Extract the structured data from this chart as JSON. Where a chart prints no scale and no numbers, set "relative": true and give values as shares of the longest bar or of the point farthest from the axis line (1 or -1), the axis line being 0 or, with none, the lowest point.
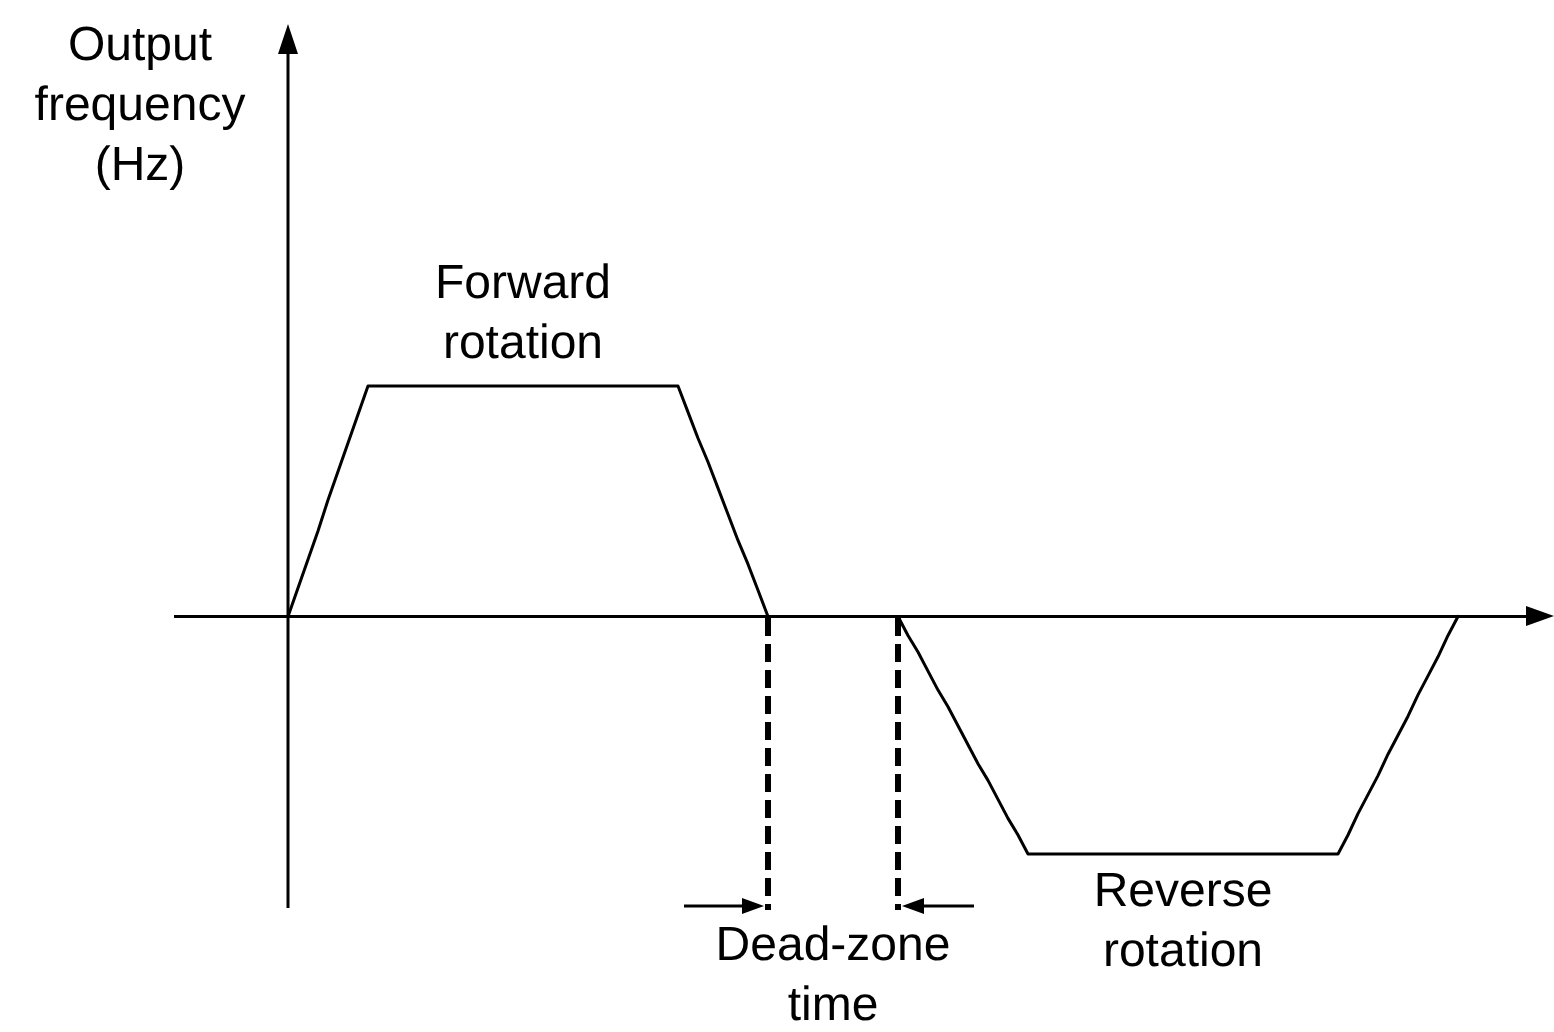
{
  "chart_data": {
    "type": "line",
    "ylabel": "Output frequency (Hz)",
    "relative": true,
    "categories": [
      null,
      null,
      null,
      null,
      null,
      null,
      null,
      null,
      null,
      null,
      null,
      null,
      null,
      null,
      null,
      null,
      null,
      null,
      null,
      null,
      null,
      null,
      null,
      null,
      null,
      null,
      null,
      null,
      null,
      null,
      null,
      null,
      null,
      null,
      null,
      null,
      null,
      null,
      null,
      null,
      null,
      null,
      null,
      null,
      null,
      null,
      null,
      null,
      null,
      null,
      null,
      null,
      null,
      null,
      null,
      null,
      null,
      null,
      null,
      null,
      null,
      null,
      null,
      null,
      null,
      null,
      null,
      null,
      null,
      null,
      null,
      null,
      null,
      null,
      null,
      null,
      null,
      null,
      null,
      null,
      null,
      null,
      null,
      null,
      null,
      null,
      null,
      null,
      null,
      null,
      null,
      null,
      null,
      null,
      null,
      null,
      null,
      null,
      null,
      null,
      null,
      null,
      null,
      null,
      null,
      null,
      null,
      null,
      null,
      null,
      null,
      null,
      null,
      null,
      null,
      null,
      null,
      null
    ],
    "series": [
      {
        "color": "#000000",
        "values": [
          0,
          0.12,
          0.24,
          0.36,
          0.49,
          0.61,
          0.73,
          0.85,
          0.97,
          0.97,
          0.97,
          0.97,
          0.97,
          0.97,
          0.97,
          0.97,
          0.97,
          0.97,
          0.97,
          0.97,
          0.97,
          0.97,
          0.97,
          0.97,
          0.97,
          0.97,
          0.97,
          0.97,
          0.97,
          0.97,
          0.97,
          0.97,
          0.97,
          0.97,
          0.97,
          0.97,
          0.97,
          0.97,
          0.97,
          0.97,
          0.86,
          0.75,
          0.65,
          0.54,
          0.43,
          0.32,
          0.22,
          0.11,
          0,
          0,
          0,
          0,
          0,
          0,
          0,
          0,
          0,
          0,
          0,
          0,
          0,
          0,
          -0.08,
          -0.15,
          -0.23,
          -0.31,
          -0.38,
          -0.46,
          -0.54,
          -0.62,
          -0.69,
          -0.77,
          -0.85,
          -0.92,
          -1,
          -1,
          -1,
          -1,
          -1,
          -1,
          -1,
          -1,
          -1,
          -1,
          -1,
          -1,
          -1,
          -1,
          -1,
          -1,
          -1,
          -1,
          -1,
          -1,
          -1,
          -1,
          -1,
          -1,
          -1,
          -1,
          -1,
          -1,
          -1,
          -1,
          -1,
          -1,
          -0.92,
          -0.83,
          -0.75,
          -0.67,
          -0.58,
          -0.5,
          -0.42,
          -0.33,
          -0.25,
          -0.17,
          -0.08,
          0
        ]
      }
    ],
    "annotations": [
      {
        "text": "Forward rotation",
        "y": 0.97
      },
      "Dead-zone time",
      {
        "text": "Reverse rotation",
        "y": -1
      }
    ]
  }
}
